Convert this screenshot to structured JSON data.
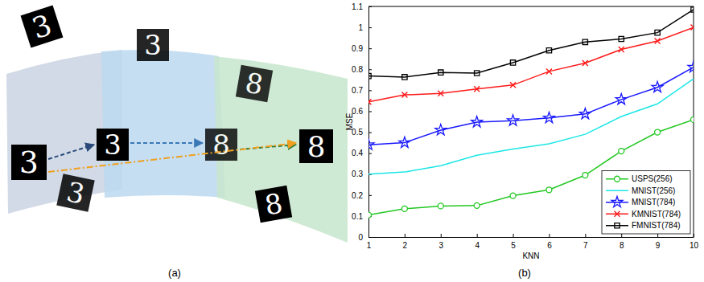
{
  "chart_data": {
    "type": "line",
    "caption": "(b)",
    "x_label": "KNN",
    "y_label": "MSE",
    "x": [
      1,
      2,
      3,
      4,
      5,
      6,
      7,
      8,
      9,
      10
    ],
    "xlim": [
      1,
      10
    ],
    "xticks": [
      1,
      2,
      3,
      4,
      5,
      6,
      7,
      8,
      9,
      10
    ],
    "ylim": [
      0,
      1.1
    ],
    "yticks": [
      0,
      0.1,
      0.2,
      0.3,
      0.4,
      0.5,
      0.6,
      0.7,
      0.8,
      0.9,
      1,
      1.1
    ],
    "grid": false,
    "legend": "southeast",
    "series": [
      {
        "name": "USPS(256)",
        "color": "#22c822",
        "marker": "circle",
        "line_style": "solid",
        "values": [
          0.105,
          0.135,
          0.148,
          0.15,
          0.197,
          0.225,
          0.295,
          0.41,
          0.5,
          0.56
        ]
      },
      {
        "name": "MNIST(256)",
        "color": "#1ce6e6",
        "marker": "none",
        "line_style": "solid",
        "values": [
          0.3,
          0.31,
          0.34,
          0.39,
          0.42,
          0.445,
          0.49,
          0.575,
          0.635,
          0.755
        ]
      },
      {
        "name": "MNIST(784)",
        "color": "#1a1aff",
        "marker": "star",
        "line_style": "solid",
        "values": [
          0.44,
          0.45,
          0.51,
          0.548,
          0.555,
          0.568,
          0.587,
          0.656,
          0.714,
          0.81
        ]
      },
      {
        "name": "KMNIST(784)",
        "color": "#ff1a1a",
        "marker": "x",
        "line_style": "solid",
        "values": [
          0.645,
          0.678,
          0.685,
          0.706,
          0.725,
          0.79,
          0.83,
          0.895,
          0.935,
          1.0
        ]
      },
      {
        "name": "FMNIST(784)",
        "color": "#000000",
        "marker": "square",
        "line_style": "solid",
        "values": [
          0.768,
          0.763,
          0.785,
          0.782,
          0.832,
          0.89,
          0.93,
          0.945,
          0.975,
          1.085
        ]
      }
    ]
  },
  "diagram": {
    "caption": "(a)",
    "tiles": [
      {
        "label": "3"
      },
      {
        "label": "3"
      },
      {
        "label": "3"
      },
      {
        "label": "3"
      },
      {
        "label": "3"
      },
      {
        "label": "8"
      },
      {
        "label": "8"
      },
      {
        "label": "8"
      },
      {
        "label": "8"
      }
    ]
  }
}
